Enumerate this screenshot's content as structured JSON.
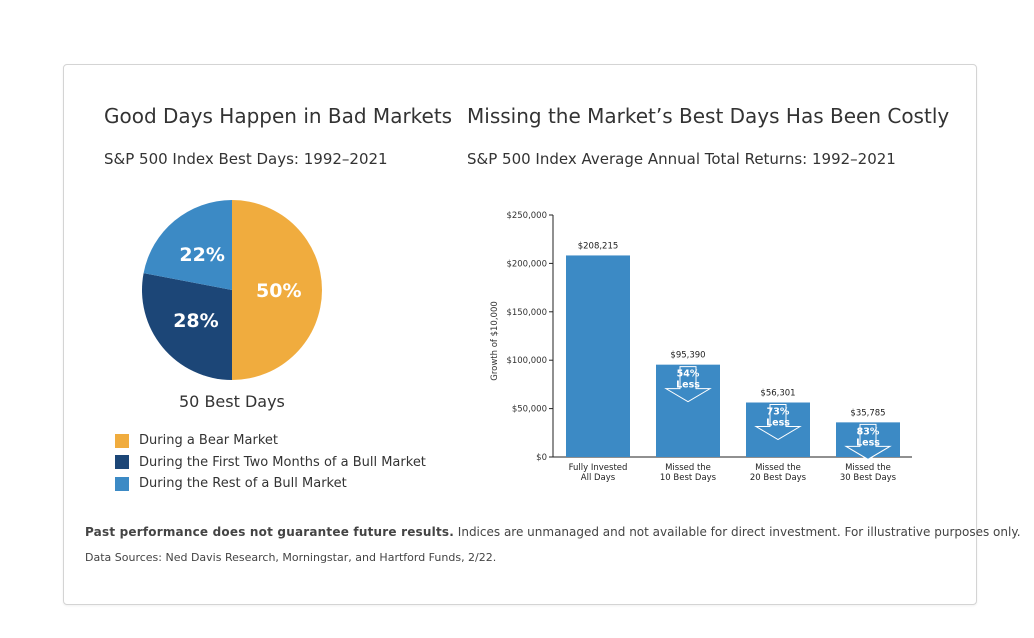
{
  "left": {
    "title": "Good Days Happen in Bad Markets",
    "subtitle": "S&P 500 Index Best Days: 1992–2021",
    "caption": "50 Best Days"
  },
  "right": {
    "title": "Missing the Market’s Best Days Has Been Costly",
    "subtitle": "S&P 500 Index Average Annual Total Returns: 1992–2021"
  },
  "legend": [
    {
      "label": "During a Bear Market",
      "color": "#F0AC3E"
    },
    {
      "label": "During the First Two Months of a Bull Market",
      "color": "#1C4677"
    },
    {
      "label": "During the Rest of a Bull Market",
      "color": "#3C8AC5"
    }
  ],
  "footer": {
    "bold": "Past performance does not guarantee future results.",
    "rest": " Indices are unmanaged and not available for direct investment. For illustrative purposes only.",
    "sources": "Data Sources: Ned Davis Research, Morningstar, and Hartford Funds, 2/22."
  },
  "chart_data": [
    {
      "type": "pie",
      "title": "Good Days Happen in Bad Markets",
      "subtitle": "S&P 500 Index Best Days: 1992–2021",
      "categories": [
        "During a Bear Market",
        "During the First Two Months of a Bull Market",
        "During the Rest of a Bull Market"
      ],
      "values": [
        50,
        28,
        22
      ],
      "labels": [
        "50%",
        "28%",
        "22%"
      ],
      "colors": [
        "#F0AC3E",
        "#1C4677",
        "#3C8AC5"
      ]
    },
    {
      "type": "bar",
      "title": "Missing the Market’s Best Days Has Been Costly",
      "subtitle": "S&P 500 Index Average Annual Total Returns: 1992–2021",
      "ylabel": "Growth of $10,000",
      "ylim": [
        0,
        250000
      ],
      "yticks": [
        0,
        50000,
        100000,
        150000,
        200000,
        250000
      ],
      "ytick_labels": [
        "$0",
        "$50,000",
        "$100,000",
        "$150,000",
        "$200,000",
        "$250,000"
      ],
      "categories": [
        [
          "Fully Invested",
          "All Days"
        ],
        [
          "Missed the",
          "10 Best Days"
        ],
        [
          "Missed the",
          "20 Best Days"
        ],
        [
          "Missed the",
          "30 Best Days"
        ]
      ],
      "values": [
        208215,
        95390,
        56301,
        35785
      ],
      "value_labels": [
        "$208,215",
        "$95,390",
        "$56,301",
        "$35,785"
      ],
      "annotations": [
        null,
        [
          "54%",
          "Less"
        ],
        [
          "73%",
          "Less"
        ],
        [
          "83%",
          "Less"
        ]
      ],
      "bar_color": "#3C8AC5"
    }
  ]
}
